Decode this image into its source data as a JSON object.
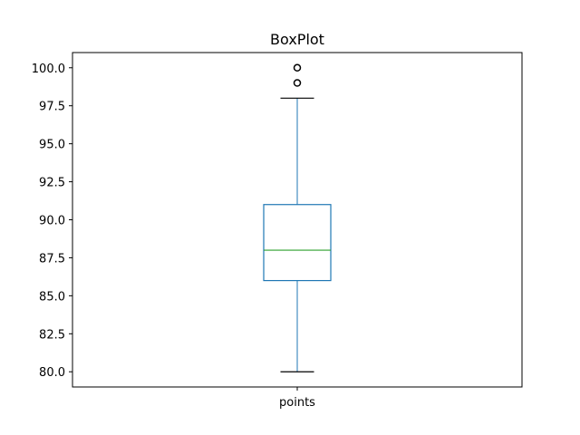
{
  "chart_data": {
    "type": "box",
    "title": "BoxPlot",
    "xlabel": "",
    "ylabel": "",
    "categories": [
      "points"
    ],
    "ylim": [
      79.0,
      101.0
    ],
    "yticks": [
      "80.0",
      "82.5",
      "85.0",
      "87.5",
      "90.0",
      "92.5",
      "95.0",
      "97.5",
      "100.0"
    ],
    "boxes": [
      {
        "name": "points",
        "whisker_low": 80,
        "q1": 86,
        "median": 88,
        "q3": 91,
        "whisker_high": 98,
        "outliers": [
          99,
          100
        ]
      }
    ],
    "grid": false,
    "legend": "none",
    "colors": {
      "box": "#1f77b4",
      "median": "#2ca02c",
      "whisker": "#1f77b4",
      "cap": "#000000",
      "outlier": "#000000"
    }
  }
}
